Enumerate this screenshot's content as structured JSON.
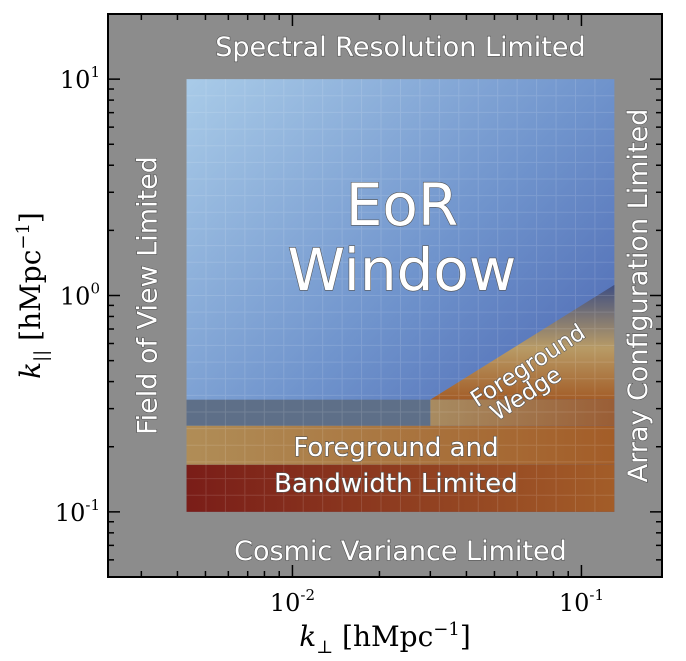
{
  "chart_data": {
    "type": "heatmap",
    "title": "",
    "x_scale": "log",
    "y_scale": "log",
    "xlim": [
      0.0023,
      0.19
    ],
    "ylim": [
      0.05,
      20
    ],
    "xlabel": {
      "symbol": "k",
      "sub": "⊥",
      "unit": "[hMpc",
      "exp": "−1",
      "close": "]"
    },
    "ylabel": {
      "symbol": "k",
      "sub": "||",
      "unit": "[hMpc",
      "exp": "−1",
      "close": "]"
    },
    "x_ticks": [
      {
        "value": 0.01,
        "base": "10",
        "exp": "-2"
      },
      {
        "value": 0.1,
        "base": "10",
        "exp": "-1"
      }
    ],
    "y_ticks": [
      {
        "value": 10,
        "base": "10",
        "exp": "1"
      },
      {
        "value": 1,
        "base": "10",
        "exp": "0"
      },
      {
        "value": 0.1,
        "base": "10",
        "exp": "-1"
      }
    ],
    "inner_region": {
      "kperp": [
        0.0043,
        0.13
      ],
      "kpar": [
        0.1,
        10
      ]
    },
    "bands": {
      "foreground_bandwidth_bottom": [
        0.1,
        0.165
      ],
      "foreground_bandwidth_top": [
        0.165,
        0.25
      ],
      "horizon_strip": [
        0.25,
        0.33
      ],
      "wedge_start_kperp": 0.03,
      "wedge_top_kpar_at_max": 1.12
    },
    "colors": {
      "outer_frame": "#8c8c8c",
      "window_light": "#a9cbe8",
      "window_mid": "#6f93cc",
      "window_dark": "#3f57a8",
      "horizon_strip": "#5e6f88",
      "wedge_dark": "#3f4f82",
      "wedge_tan": "#b89b66",
      "tan_band": "#b08d57",
      "orange_band": "#a35d28",
      "red_band": "#7a1d18"
    },
    "labels": {
      "top": "Spectral Resolution Limited",
      "bottom": "Cosmic Variance Limited",
      "left": "Field of View Limited",
      "right": "Array Configuration Limited",
      "eor_line1": "EoR",
      "eor_line2": "Window",
      "wedge_line1": "Foreground",
      "wedge_line2": "Wedge",
      "band_line1": "Foreground and",
      "band_line2": "Bandwidth Limited"
    }
  }
}
